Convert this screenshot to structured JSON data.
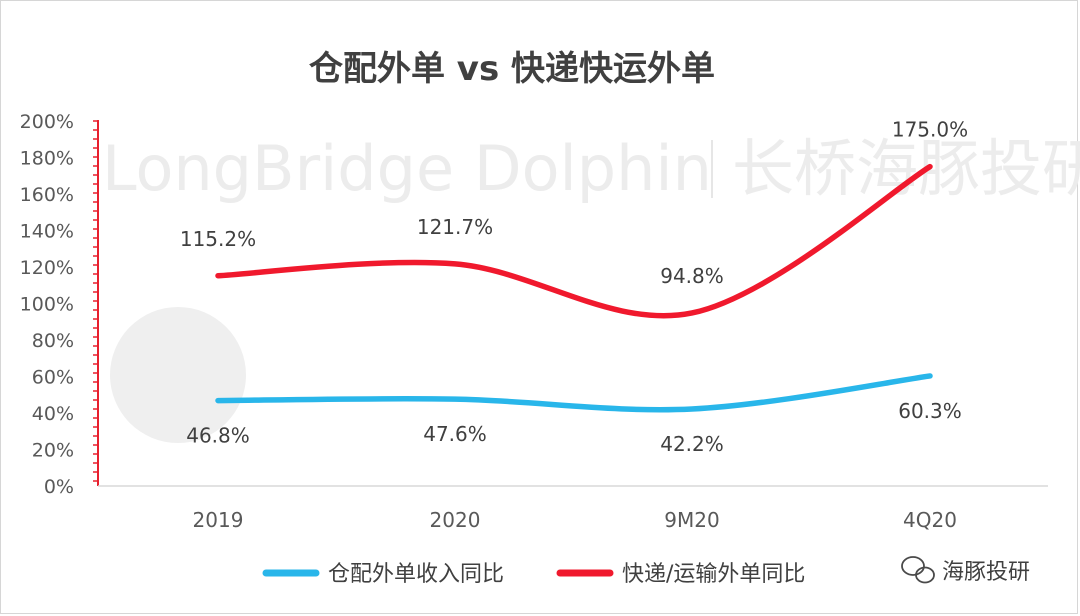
{
  "chart_data": {
    "type": "line",
    "title": "仓配外单 vs 快递快运外单",
    "categories": [
      "2019",
      "2020",
      "9M20",
      "4Q20"
    ],
    "ylim": [
      0,
      200
    ],
    "yticks": [
      "0%",
      "20%",
      "40%",
      "60%",
      "80%",
      "100%",
      "120%",
      "140%",
      "160%",
      "180%",
      "200%"
    ],
    "series": [
      {
        "name": "仓配外单收入同比",
        "color": "#29b6ea",
        "values": [
          46.8,
          47.6,
          42.2,
          60.3
        ],
        "labels": [
          "46.8%",
          "47.6%",
          "42.2%",
          "60.3%"
        ]
      },
      {
        "name": "快递/运输外单同比",
        "color": "#f0192d",
        "values": [
          115.2,
          121.7,
          94.8,
          175.0
        ],
        "labels": [
          "115.2%",
          "121.7%",
          "94.8%",
          "175.0%"
        ]
      }
    ],
    "legend_position": "bottom"
  },
  "watermark": {
    "text": "LongBridge Dolphin",
    "cn_text": "长桥海豚投研",
    "brand": "海豚投研"
  }
}
